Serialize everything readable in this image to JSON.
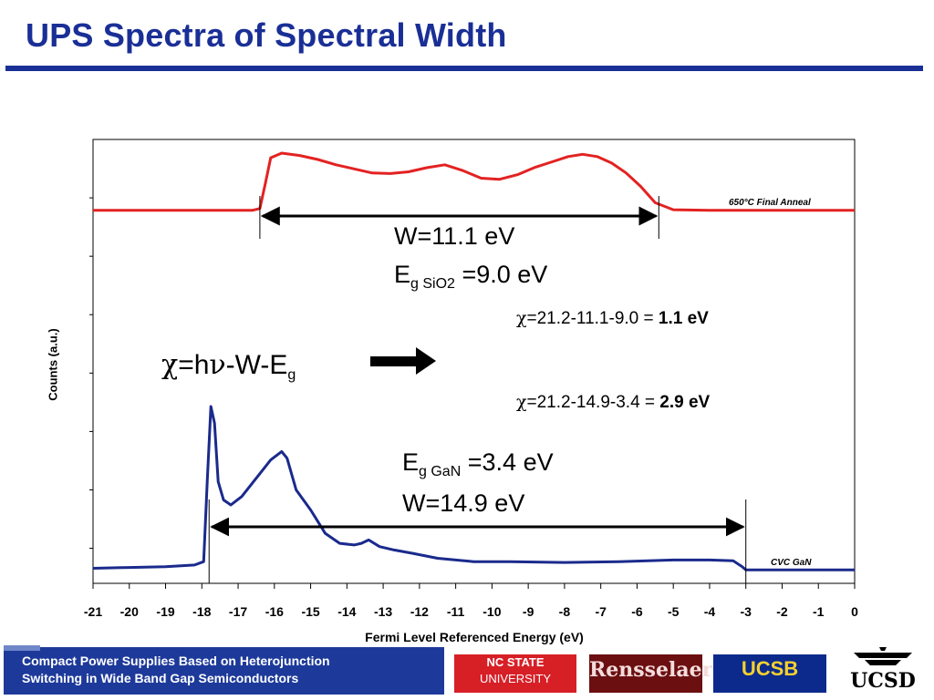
{
  "slide": {
    "title": "UPS Spectra of Spectral Width"
  },
  "colors": {
    "title": "#1a2f96",
    "series_top": "#e32222",
    "series_bottom": "#1a2a8c",
    "footer_bg": "#1d3a9a"
  },
  "chart_data": {
    "type": "line",
    "title": "",
    "xlabel": "Fermi Level Referenced Energy (eV)",
    "ylabel": "Counts (a.u.)",
    "xlim": [
      -21,
      0
    ],
    "x_ticks": [
      "-21",
      "-20",
      "-19",
      "-18",
      "-17",
      "-16",
      "-15",
      "-14",
      "-13",
      "-12",
      "-11",
      "-10",
      "-9",
      "-8",
      "-7",
      "-6",
      "-5",
      "-4",
      "-3",
      "-2",
      "-1",
      "0"
    ],
    "grid": false,
    "series": [
      {
        "name": "650°C Final Anneal",
        "color": "#e32222",
        "x": [
          -21,
          -20,
          -19,
          -18,
          -17.5,
          -16.6,
          -16.4,
          -16.25,
          -16.1,
          -15.8,
          -15.3,
          -14.8,
          -14.3,
          -13.8,
          -13.3,
          -12.8,
          -12.3,
          -11.8,
          -11.3,
          -10.8,
          -10.3,
          -9.8,
          -9.3,
          -8.8,
          -8.3,
          -7.9,
          -7.5,
          -7.1,
          -6.7,
          -6.3,
          -5.9,
          -5.5,
          -5,
          -4,
          -3,
          -2,
          -1,
          0
        ],
        "y": [
          0.02,
          0.02,
          0.02,
          0.02,
          0.02,
          0.02,
          0.05,
          0.48,
          0.92,
          1.0,
          0.96,
          0.89,
          0.8,
          0.73,
          0.66,
          0.65,
          0.68,
          0.75,
          0.8,
          0.7,
          0.57,
          0.55,
          0.63,
          0.76,
          0.86,
          0.94,
          0.98,
          0.94,
          0.83,
          0.66,
          0.43,
          0.15,
          0.03,
          0.02,
          0.02,
          0.02,
          0.02,
          0.02
        ]
      },
      {
        "name": "CVC GaN",
        "color": "#1a2a8c",
        "x": [
          -21,
          -20,
          -19,
          -18.2,
          -17.95,
          -17.85,
          -17.75,
          -17.65,
          -17.55,
          -17.4,
          -17.2,
          -16.9,
          -16.5,
          -16.1,
          -15.8,
          -15.65,
          -15.4,
          -15,
          -14.6,
          -14.2,
          -13.8,
          -13.6,
          -13.4,
          -13.1,
          -12.7,
          -12.2,
          -11.5,
          -10.5,
          -9.5,
          -8,
          -6.5,
          -5,
          -4,
          -3.35,
          -3.1,
          -3,
          -2,
          -1,
          0
        ],
        "y": [
          0.03,
          0.035,
          0.04,
          0.05,
          0.07,
          0.55,
          1.0,
          0.9,
          0.55,
          0.44,
          0.41,
          0.46,
          0.57,
          0.68,
          0.73,
          0.69,
          0.5,
          0.38,
          0.24,
          0.18,
          0.17,
          0.18,
          0.2,
          0.16,
          0.14,
          0.12,
          0.09,
          0.07,
          0.07,
          0.065,
          0.07,
          0.08,
          0.08,
          0.075,
          0.04,
          0.02,
          0.02,
          0.02,
          0.02
        ]
      }
    ],
    "annotations": {
      "top_width": "W=11.1 eV",
      "top_gap_prefix": "E",
      "top_gap_sub": "g SiO2",
      "top_gap_value": " =9.0 eV",
      "chi_top_prefix": "=21.2-11.1-9.0 = ",
      "chi_top_result": "1.1 eV",
      "formula_lhs": "=h",
      "formula_mid": "-W-E",
      "formula_sub": "g",
      "chi_bottom_prefix": "=21.2-14.9-3.4 = ",
      "chi_bottom_result": "2.9 eV",
      "bottom_gap_prefix": "E",
      "bottom_gap_sub": "g GaN",
      "bottom_gap_value": " =3.4 eV",
      "bottom_width": "W=14.9 eV",
      "chi_symbol": "χ",
      "nu_symbol": "ν"
    },
    "width_markers": {
      "top": [
        -16.4,
        -5.4
      ],
      "bottom": [
        -17.8,
        -3.0
      ]
    }
  },
  "footer": {
    "line1": "Compact Power Supplies Based on Heterojunction",
    "line2": "Switching in Wide Band Gap Semiconductors",
    "logos": {
      "ncstate_line1": "NC STATE",
      "ncstate_line2": "UNIVERSITY",
      "rensselaer": "Rensselaer",
      "ucsb": "UCSB",
      "ucsd": "UCSD"
    }
  }
}
